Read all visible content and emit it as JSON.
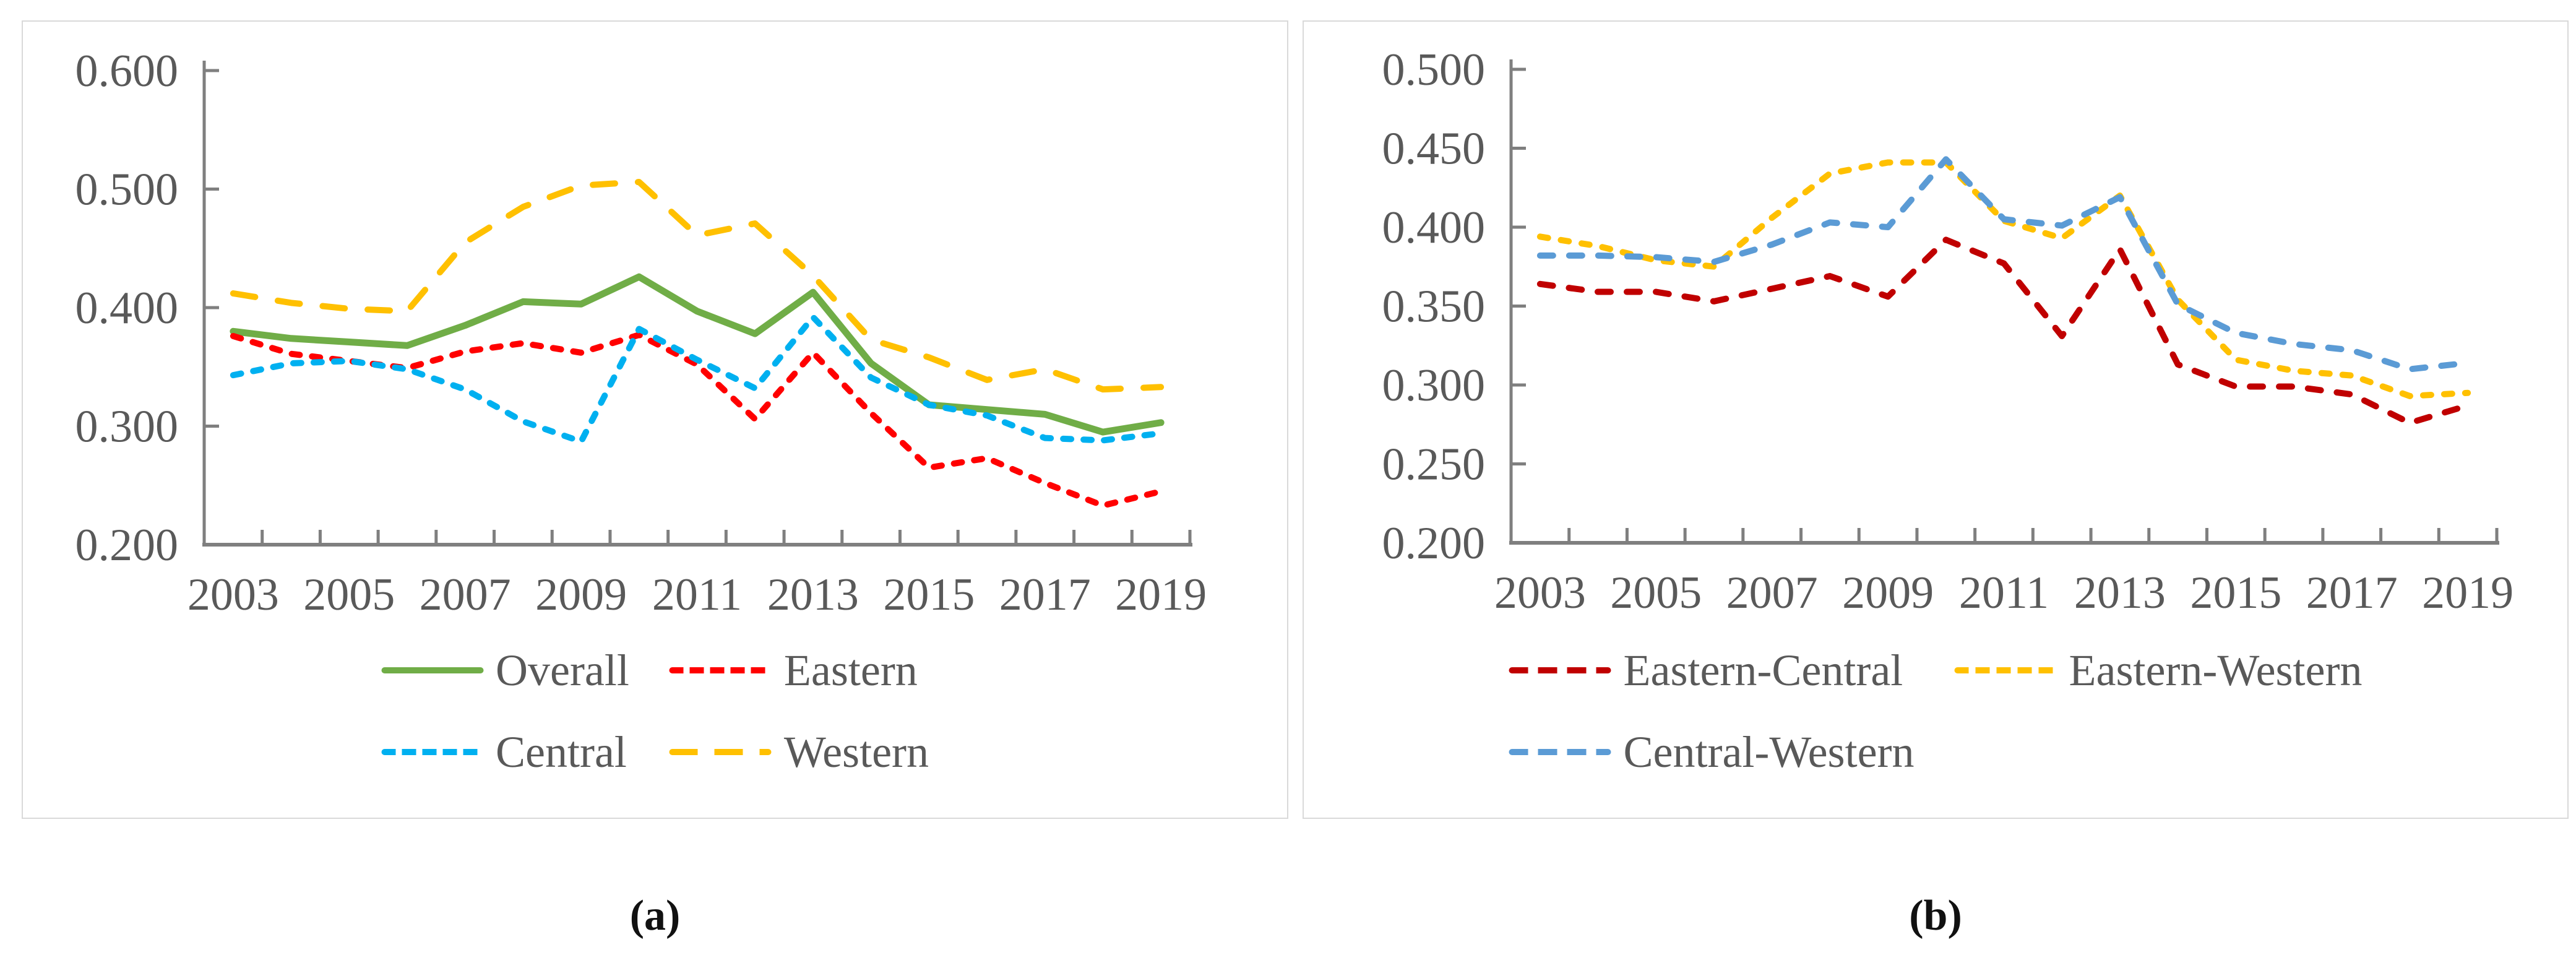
{
  "figure": {
    "background": "#ffffff",
    "axis_line_color": "#7f7f7f",
    "tick_label_color": "#595959",
    "panel_border_color": "#d9d9d9"
  },
  "chart_data": [
    {
      "type": "line",
      "panel_label": "(a)",
      "x": [
        2003,
        2004,
        2005,
        2006,
        2007,
        2008,
        2009,
        2010,
        2011,
        2012,
        2013,
        2014,
        2015,
        2016,
        2017,
        2018,
        2019
      ],
      "xtick_labels": [
        "2003",
        "2005",
        "2007",
        "2009",
        "2011",
        "2013",
        "2015",
        "2017",
        "2019"
      ],
      "ylim": [
        0.2,
        0.6
      ],
      "ytick_labels": [
        "0.600",
        "0.500",
        "0.400",
        "0.300",
        "0.200"
      ],
      "ytick_values": [
        0.6,
        0.5,
        0.4,
        0.3,
        0.2
      ],
      "grid": "off",
      "legend_position": "bottom",
      "legend_rows": [
        [
          "Overall",
          "Eastern"
        ],
        [
          "Central",
          "Western"
        ]
      ],
      "series": [
        {
          "name": "Overall",
          "color": "#70AD47",
          "style": "solid",
          "dash": null,
          "values": [
            0.38,
            0.374,
            0.371,
            0.368,
            0.385,
            0.405,
            0.403,
            0.426,
            0.397,
            0.378,
            0.413,
            0.353,
            0.318,
            0.314,
            0.31,
            0.295,
            0.303
          ]
        },
        {
          "name": "Eastern",
          "color": "#FF0000",
          "style": "dashed",
          "dash": [
            13,
            20
          ],
          "values": [
            0.376,
            0.361,
            0.355,
            0.349,
            0.363,
            0.37,
            0.362,
            0.377,
            0.352,
            0.306,
            0.362,
            0.311,
            0.265,
            0.273,
            0.252,
            0.233,
            0.245
          ]
        },
        {
          "name": "Central",
          "color": "#00B0F0",
          "style": "dashed",
          "dash": [
            13,
            20
          ],
          "values": [
            0.343,
            0.353,
            0.355,
            0.348,
            0.331,
            0.304,
            0.287,
            0.382,
            0.356,
            0.332,
            0.392,
            0.341,
            0.318,
            0.309,
            0.29,
            0.288,
            0.294
          ]
        },
        {
          "name": "Western",
          "color": "#FFC000",
          "style": "dashed",
          "dash": [
            36,
            37
          ],
          "values": [
            0.412,
            0.404,
            0.399,
            0.397,
            0.455,
            0.485,
            0.503,
            0.506,
            0.461,
            0.471,
            0.427,
            0.373,
            0.358,
            0.339,
            0.348,
            0.331,
            0.333
          ]
        }
      ]
    },
    {
      "type": "line",
      "panel_label": "(b)",
      "x": [
        2003,
        2004,
        2005,
        2006,
        2007,
        2008,
        2009,
        2010,
        2011,
        2012,
        2013,
        2014,
        2015,
        2016,
        2017,
        2018,
        2019
      ],
      "xtick_labels": [
        "2003",
        "2005",
        "2007",
        "2009",
        "2011",
        "2013",
        "2015",
        "2017",
        "2019"
      ],
      "ylim": [
        0.2,
        0.5
      ],
      "ytick_labels": [
        "0.500",
        "0.450",
        "0.400",
        "0.350",
        "0.300",
        "0.250",
        "0.200"
      ],
      "ytick_values": [
        0.5,
        0.45,
        0.4,
        0.35,
        0.3,
        0.25,
        0.2
      ],
      "grid": "off",
      "legend_position": "bottom",
      "legend_rows": [
        [
          "Eastern-Central",
          "Eastern-Western"
        ],
        [
          "Central-Western"
        ]
      ],
      "series": [
        {
          "name": "Eastern-Central",
          "color": "#C00000",
          "style": "dashed",
          "dash": [
            21,
            26
          ],
          "values": [
            0.364,
            0.359,
            0.359,
            0.353,
            0.361,
            0.369,
            0.356,
            0.392,
            0.377,
            0.331,
            0.386,
            0.313,
            0.299,
            0.299,
            0.294,
            0.276,
            0.287
          ]
        },
        {
          "name": "Eastern-Western",
          "color": "#FFC000",
          "style": "dashed",
          "dash": [
            13,
            21
          ],
          "values": [
            0.394,
            0.388,
            0.379,
            0.375,
            0.406,
            0.434,
            0.441,
            0.441,
            0.404,
            0.393,
            0.42,
            0.354,
            0.316,
            0.309,
            0.306,
            0.293,
            0.295
          ]
        },
        {
          "name": "Central-Western",
          "color": "#5B9BD5",
          "style": "dashed",
          "dash": [
            21,
            26
          ],
          "values": [
            0.382,
            0.382,
            0.381,
            0.378,
            0.389,
            0.403,
            0.4,
            0.443,
            0.405,
            0.401,
            0.419,
            0.351,
            0.333,
            0.326,
            0.322,
            0.31,
            0.314
          ]
        }
      ]
    }
  ]
}
